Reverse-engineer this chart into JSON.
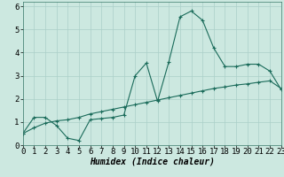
{
  "xlabel": "Humidex (Indice chaleur)",
  "background_color": "#cce8e0",
  "grid_color": "#aacfc8",
  "line_color": "#1a6b5a",
  "x_curve": [
    0,
    1,
    2,
    3,
    4,
    5,
    6,
    7,
    8,
    9,
    10,
    11,
    12,
    13,
    14,
    15,
    16,
    17,
    18,
    19,
    20,
    21,
    22,
    23
  ],
  "y_curve": [
    0.5,
    1.2,
    1.2,
    0.85,
    0.3,
    0.2,
    1.1,
    1.15,
    1.2,
    1.3,
    3.0,
    3.55,
    1.9,
    3.6,
    5.55,
    5.8,
    5.4,
    4.2,
    3.4,
    3.4,
    3.5,
    3.5,
    3.2,
    2.4
  ],
  "y_line": [
    0.5,
    0.75,
    0.95,
    1.05,
    1.1,
    1.2,
    1.35,
    1.45,
    1.55,
    1.65,
    1.75,
    1.85,
    1.95,
    2.05,
    2.15,
    2.25,
    2.35,
    2.45,
    2.52,
    2.6,
    2.65,
    2.72,
    2.78,
    2.45
  ],
  "xlim": [
    0,
    23
  ],
  "ylim": [
    0,
    6.2
  ],
  "xtick_labels": [
    "0",
    "1",
    "2",
    "3",
    "4",
    "5",
    "6",
    "7",
    "8",
    "9",
    "10",
    "11",
    "12",
    "13",
    "14",
    "15",
    "16",
    "17",
    "18",
    "19",
    "20",
    "21",
    "22",
    "23"
  ],
  "yticks": [
    0,
    1,
    2,
    3,
    4,
    5,
    6
  ],
  "fontsize_label": 7,
  "fontsize_tick": 6.5
}
